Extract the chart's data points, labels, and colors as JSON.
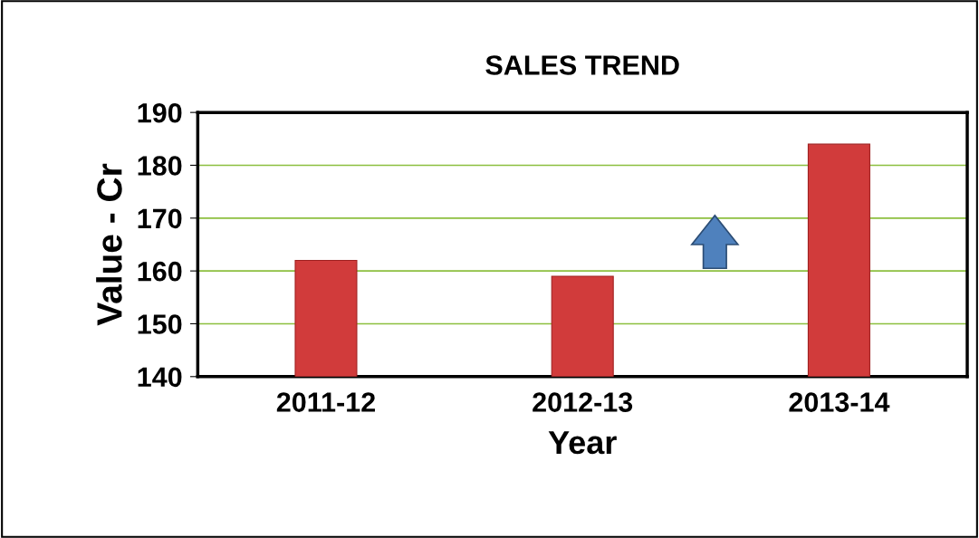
{
  "chart_data": {
    "type": "bar",
    "title": "SALES TREND",
    "xlabel": "Year",
    "ylabel": "Value - Cr",
    "categories": [
      "2011-12",
      "2012-13",
      "2013-14"
    ],
    "values": [
      162,
      159,
      184
    ],
    "color": "#d13b3b",
    "ylim": [
      140,
      190
    ],
    "yticks": [
      140,
      150,
      160,
      170,
      180,
      190
    ],
    "grid": "y"
  }
}
